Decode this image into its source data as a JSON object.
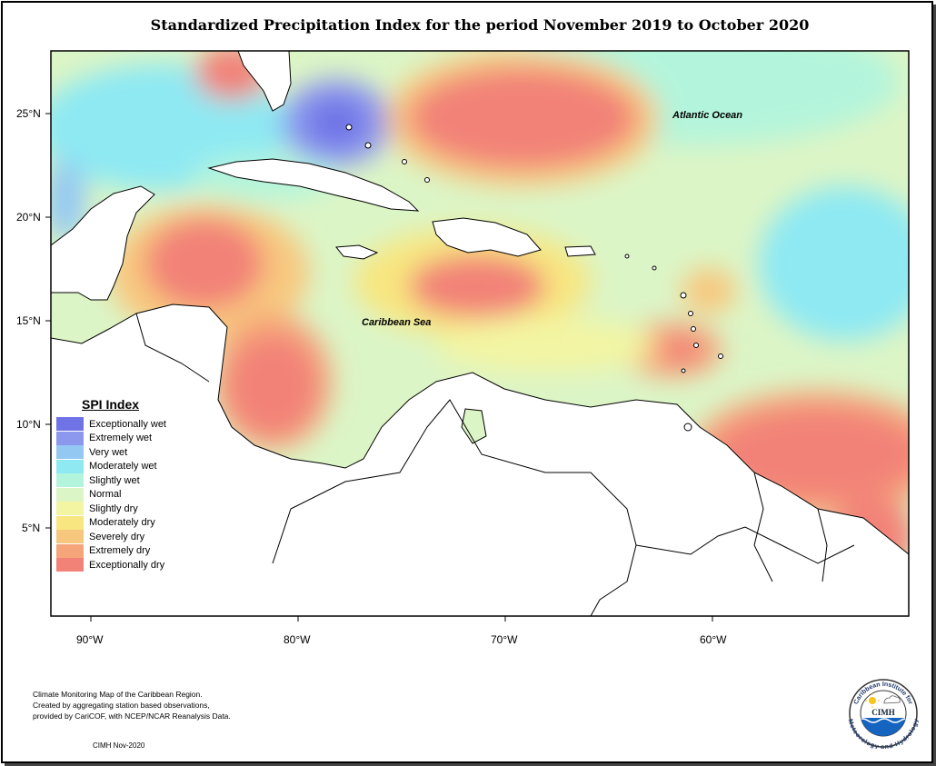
{
  "title": "Standardized Precipitation Index for the period November 2019 to October 2020",
  "map_labels": {
    "atlantic": "Atlantic Ocean",
    "caribbean": "Caribbean Sea"
  },
  "axes": {
    "lat_ticks": [
      "25°N",
      "20°N",
      "15°N",
      "10°N",
      "5°N"
    ],
    "lon_ticks": [
      "90°W",
      "80°W",
      "70°W",
      "60°W"
    ]
  },
  "legend": {
    "title": "SPI Index",
    "items": [
      {
        "label": "Exceptionally wet",
        "color": "#6f73e6"
      },
      {
        "label": "Extremely wet",
        "color": "#8c97ee"
      },
      {
        "label": "Very wet",
        "color": "#93c8f3"
      },
      {
        "label": "Moderately wet",
        "color": "#8ee9f3"
      },
      {
        "label": "Slightly wet",
        "color": "#b3f5dc"
      },
      {
        "label": "Normal",
        "color": "#dcf5c6"
      },
      {
        "label": "Slightly dry",
        "color": "#f3f5a3"
      },
      {
        "label": "Moderately dry",
        "color": "#f8e680"
      },
      {
        "label": "Severely dry",
        "color": "#f8c77e"
      },
      {
        "label": "Extremely dry",
        "color": "#f6a57a"
      },
      {
        "label": "Exceptionally dry",
        "color": "#f28278"
      }
    ]
  },
  "caption": {
    "line1": "Climate Monitoring Map of the Caribbean Region.",
    "line2": "Created by aggregating station based observations,",
    "line3": "provided by CariCOF, with NCEP/NCAR Reanalysis Data.",
    "credit": "CIMH Nov-2020"
  },
  "logo": {
    "acronym": "CIMH",
    "ring_top": "Caribbean Institute for",
    "ring_bottom": "Meteorology and Hydrology"
  }
}
